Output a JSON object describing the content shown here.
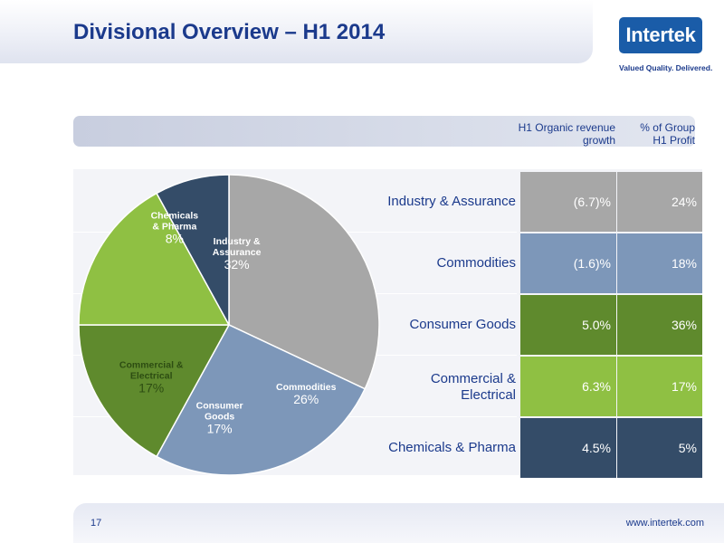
{
  "slide": {
    "title": "Divisional Overview – H1 2014",
    "page_number": "17",
    "footer_url": "www.intertek.com"
  },
  "logo": {
    "name": "Intertek",
    "tagline": "Valued Quality. Delivered.",
    "color": "#1a5ca8"
  },
  "table_header": {
    "growth": "H1 Organic revenue growth",
    "profit": "% of Group H1 Profit"
  },
  "chart_data": [
    {
      "type": "pie",
      "categories": [
        "Industry & Assurance",
        "Commodities",
        "Consumer Goods",
        "Commercial & Electrical",
        "Chemicals & Pharma"
      ],
      "pie_labels": [
        "Industry & Assurance",
        "Commodities",
        "Consumer Goods",
        "Commercial & Electrical",
        "Chemicals & Pharma"
      ],
      "values": [
        32,
        26,
        17,
        17,
        8
      ],
      "value_labels": [
        "32%",
        "26%",
        "17%",
        "17%",
        "8%"
      ],
      "colors": [
        "#a7a7a7",
        "#7d97b9",
        "#5f8a2d",
        "#8fc043",
        "#344c68"
      ],
      "start_angle_deg": 0,
      "direction": "clockwise"
    },
    {
      "type": "table",
      "columns": [
        "H1 Organic revenue growth",
        "% of Group H1 Profit"
      ],
      "rows": [
        {
          "label": "Industry & Assurance",
          "growth": "(6.7)%",
          "profit": "24%",
          "color": "#a7a7a7"
        },
        {
          "label": "Commodities",
          "growth": "(1.6)%",
          "profit": "18%",
          "color": "#7d97b9"
        },
        {
          "label": "Consumer Goods",
          "growth": "5.0%",
          "profit": "36%",
          "color": "#5f8a2d"
        },
        {
          "label": "Commercial & Electrical",
          "growth": "6.3%",
          "profit": "17%",
          "color": "#8fc043"
        },
        {
          "label": "Chemicals & Pharma",
          "growth": "4.5%",
          "profit": "5%",
          "color": "#344c68"
        }
      ]
    }
  ]
}
